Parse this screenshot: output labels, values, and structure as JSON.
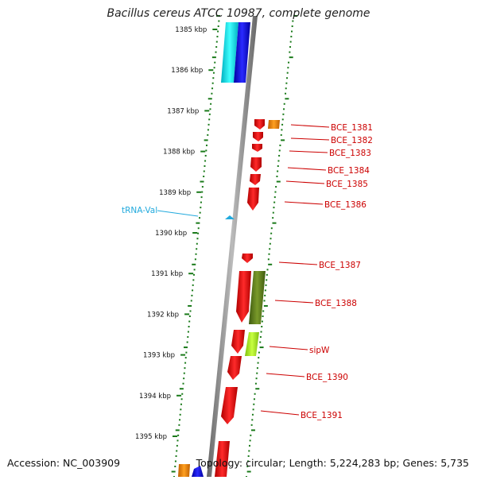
{
  "title": "Bacillus cereus ATCC 10987, complete genome",
  "footer": {
    "accession": "Accession: NC_003909",
    "summary": "Topology: circular; Length: 5,224,283 bp; Genes: 5,735"
  },
  "kbp_ticks": [
    "1385 kbp",
    "1386 kbp",
    "1387 kbp",
    "1388 kbp",
    "1389 kbp",
    "1390 kbp",
    "1391 kbp",
    "1392 kbp",
    "1393 kbp",
    "1394 kbp",
    "1395 kbp"
  ],
  "gene_labels": [
    "BCE_1381",
    "BCE_1382",
    "BCE_1383",
    "BCE_1384",
    "BCE_1385",
    "BCE_1386",
    "BCE_1387",
    "BCE_1388",
    "sipW",
    "BCE_1390",
    "BCE_1391"
  ],
  "trna_label": "tRNA-Val",
  "colors": {
    "backbone": "#888888",
    "tick_dots": "#1a7a1a",
    "gene_red": "#e01010",
    "gene_blue": "#1010e0",
    "gene_cyan": "#00e0f0",
    "gene_orange": "#f08a00",
    "gene_olive": "#5a7a1a",
    "gene_lime": "#a8e820",
    "label_red": "#cc0000",
    "label_cyan": "#22aadd"
  }
}
